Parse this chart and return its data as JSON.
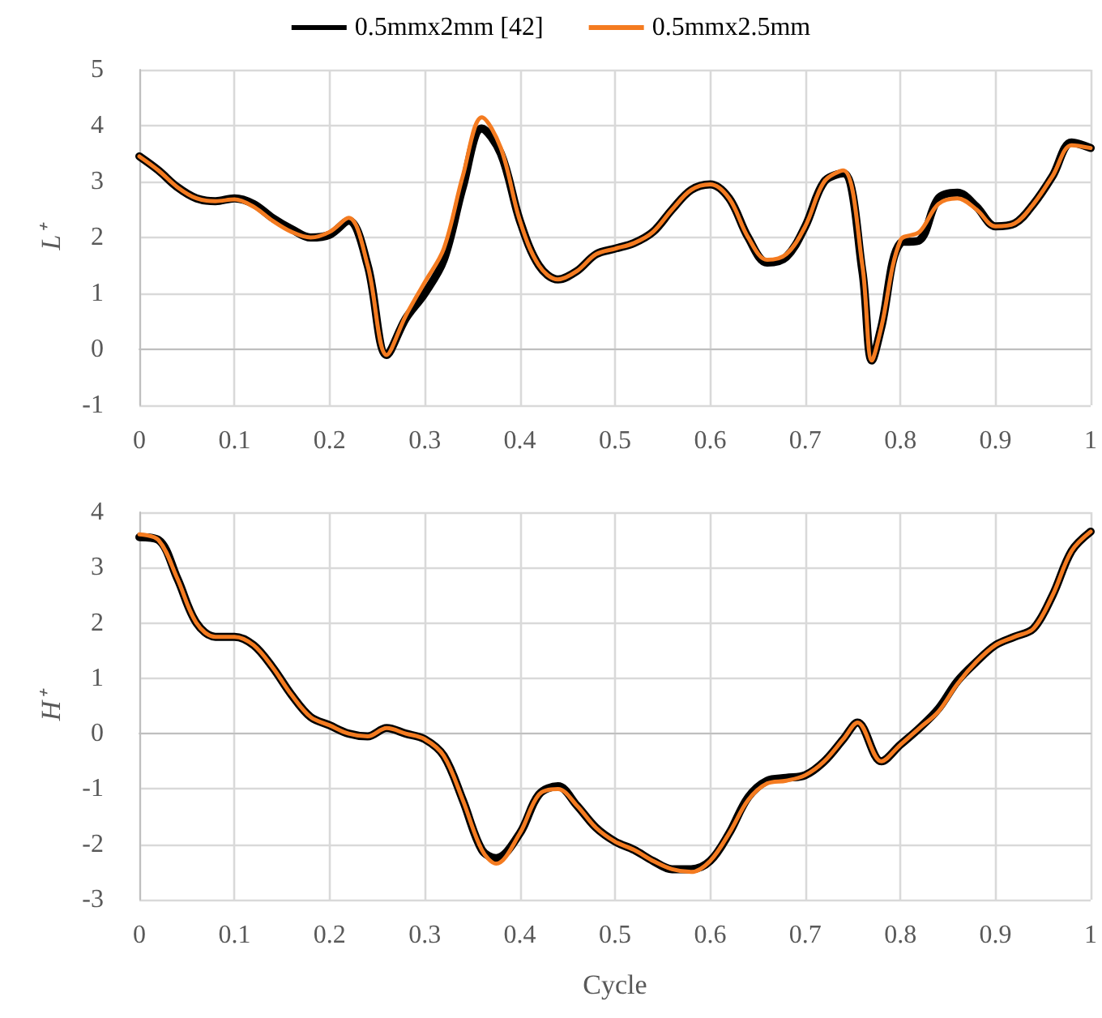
{
  "chart_data": [
    {
      "type": "line",
      "ylabel": "L⁺",
      "legend": "top",
      "grid": true,
      "marker": "none",
      "line_style": "solid",
      "x": [
        0,
        0.02,
        0.04,
        0.06,
        0.08,
        0.1,
        0.12,
        0.14,
        0.16,
        0.18,
        0.2,
        0.22,
        0.24,
        0.26,
        0.28,
        0.3,
        0.32,
        0.34,
        0.36,
        0.38,
        0.4,
        0.42,
        0.44,
        0.46,
        0.48,
        0.5,
        0.52,
        0.54,
        0.56,
        0.58,
        0.6,
        0.62,
        0.64,
        0.66,
        0.68,
        0.7,
        0.72,
        0.74,
        0.76,
        0.77,
        0.78,
        0.8,
        0.82,
        0.84,
        0.86,
        0.88,
        0.9,
        0.92,
        0.94,
        0.96,
        0.98,
        1
      ],
      "series": [
        {
          "name": "0.5mmx2mm [42]",
          "color": "#000000",
          "values": [
            3.45,
            3.2,
            2.9,
            2.7,
            2.65,
            2.7,
            2.6,
            2.35,
            2.15,
            2.0,
            2.05,
            2.3,
            1.5,
            -0.1,
            0.55,
            1.0,
            1.6,
            2.9,
            3.95,
            3.5,
            2.3,
            1.5,
            1.25,
            1.4,
            1.7,
            1.8,
            1.9,
            2.1,
            2.5,
            2.85,
            2.95,
            2.7,
            2.0,
            1.55,
            1.65,
            2.2,
            3.0,
            3.15,
            1.4,
            -0.2,
            0.4,
            1.9,
            1.95,
            2.7,
            2.8,
            2.55,
            2.2,
            2.25,
            2.6,
            3.1,
            3.7,
            3.6
          ]
        },
        {
          "name": "0.5mmx2.5mm",
          "color": "#f47b20",
          "values": [
            3.45,
            3.2,
            2.9,
            2.7,
            2.65,
            2.68,
            2.55,
            2.3,
            2.1,
            2.0,
            2.1,
            2.35,
            1.5,
            -0.1,
            0.6,
            1.2,
            1.8,
            3.1,
            4.15,
            3.6,
            2.3,
            1.5,
            1.25,
            1.4,
            1.7,
            1.8,
            1.9,
            2.1,
            2.5,
            2.85,
            2.95,
            2.7,
            2.0,
            1.6,
            1.7,
            2.2,
            3.0,
            3.2,
            1.5,
            -0.2,
            0.4,
            1.95,
            2.1,
            2.6,
            2.7,
            2.5,
            2.2,
            2.25,
            2.6,
            3.1,
            3.65,
            3.6
          ]
        }
      ],
      "xlim": [
        0,
        1
      ],
      "xticks": [
        0,
        0.1,
        0.2,
        0.3,
        0.4,
        0.5,
        0.6,
        0.7,
        0.8,
        0.9,
        1
      ],
      "ylim": [
        -1,
        5
      ],
      "yticks": [
        -1,
        0,
        1,
        2,
        3,
        4,
        5
      ]
    },
    {
      "type": "line",
      "ylabel": "H⁺",
      "xlabel": "Cycle",
      "grid": true,
      "marker": "none",
      "line_style": "solid",
      "x": [
        0,
        0.02,
        0.04,
        0.06,
        0.08,
        0.1,
        0.12,
        0.14,
        0.16,
        0.18,
        0.2,
        0.22,
        0.24,
        0.26,
        0.28,
        0.3,
        0.32,
        0.34,
        0.36,
        0.375,
        0.4,
        0.42,
        0.44,
        0.46,
        0.48,
        0.5,
        0.52,
        0.54,
        0.56,
        0.58,
        0.6,
        0.62,
        0.64,
        0.66,
        0.68,
        0.7,
        0.72,
        0.74,
        0.755,
        0.78,
        0.8,
        0.82,
        0.84,
        0.86,
        0.88,
        0.9,
        0.92,
        0.94,
        0.96,
        0.98,
        1
      ],
      "series": [
        {
          "color": "#000000",
          "values": [
            3.55,
            3.5,
            2.8,
            2.0,
            1.75,
            1.75,
            1.6,
            1.2,
            0.7,
            0.3,
            0.15,
            0.0,
            -0.05,
            0.1,
            0.0,
            -0.1,
            -0.4,
            -1.2,
            -2.1,
            -2.25,
            -1.8,
            -1.1,
            -0.95,
            -1.3,
            -1.7,
            -1.95,
            -2.1,
            -2.3,
            -2.45,
            -2.45,
            -2.3,
            -1.8,
            -1.15,
            -0.85,
            -0.8,
            -0.75,
            -0.5,
            -0.1,
            0.2,
            -0.5,
            -0.2,
            0.1,
            0.45,
            0.95,
            1.3,
            1.6,
            1.75,
            1.9,
            2.5,
            3.3,
            3.65
          ]
        },
        {
          "color": "#f47b20",
          "values": [
            3.6,
            3.5,
            2.8,
            2.0,
            1.75,
            1.75,
            1.6,
            1.2,
            0.7,
            0.3,
            0.15,
            0.0,
            -0.05,
            0.1,
            0.0,
            -0.1,
            -0.4,
            -1.2,
            -2.1,
            -2.35,
            -1.8,
            -1.1,
            -1.0,
            -1.3,
            -1.7,
            -1.95,
            -2.1,
            -2.3,
            -2.45,
            -2.5,
            -2.3,
            -1.8,
            -1.2,
            -0.9,
            -0.85,
            -0.75,
            -0.5,
            -0.1,
            0.2,
            -0.5,
            -0.2,
            0.1,
            0.4,
            0.9,
            1.3,
            1.6,
            1.75,
            1.9,
            2.5,
            3.3,
            3.65
          ]
        }
      ],
      "xlim": [
        0,
        1
      ],
      "xticks": [
        0,
        0.1,
        0.2,
        0.3,
        0.4,
        0.5,
        0.6,
        0.7,
        0.8,
        0.9,
        1
      ],
      "ylim": [
        -3,
        4
      ],
      "yticks": [
        -3,
        -2,
        -1,
        0,
        1,
        2,
        3,
        4
      ]
    }
  ]
}
